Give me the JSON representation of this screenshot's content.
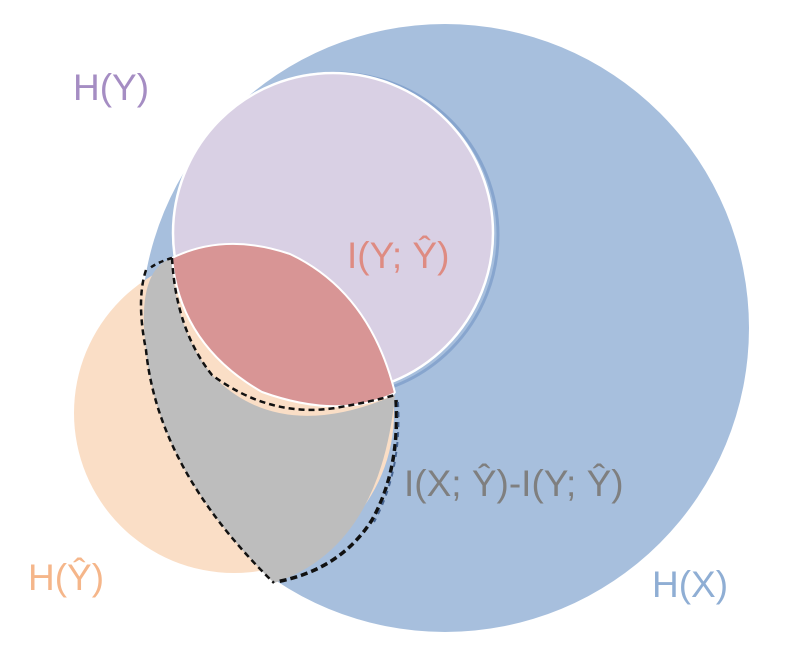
{
  "labels": {
    "h_y": "H(Y)",
    "h_yhat": "H(Ŷ)",
    "h_x": "H(X)",
    "i_y_yhat": "I(Y; Ŷ)",
    "i_x_minus": "I(X; Ŷ)-I(Y; Ŷ)"
  },
  "colors": {
    "h_x_fill": "#A7BFDD",
    "h_y_fill": "#D9D0E4",
    "h_yhat_fill": "#FADEC6",
    "intersection_fill": "#D89595",
    "gray_region_fill": "#BDBDBD",
    "h_y_label": "#A58DC3",
    "h_yhat_label": "#F5B68A",
    "h_x_label": "#8FAED4",
    "i_y_yhat_label": "#DE8B82",
    "i_x_minus_label": "#7F7F7F",
    "dashed_outline": "#111111",
    "white_stroke": "#ffffff"
  }
}
